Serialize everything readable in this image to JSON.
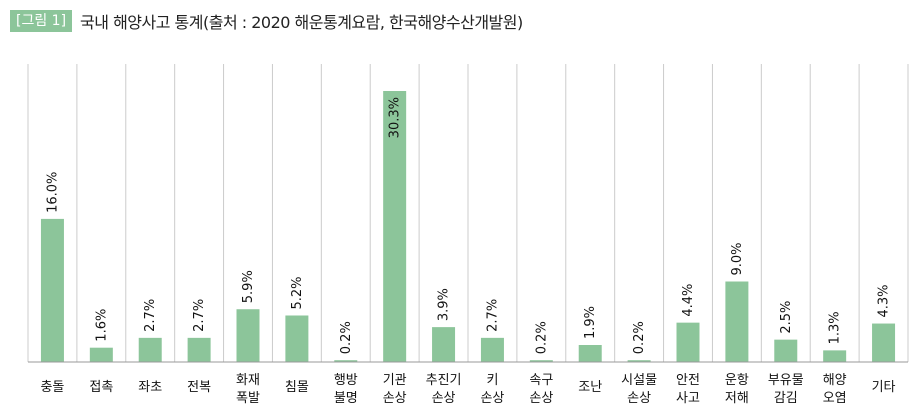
{
  "figure": {
    "badge": "[그림 1]",
    "title": "국내 해양사고 통계(출처 : 2020 해운통계요람, 한국해양수산개발원)"
  },
  "colors": {
    "bar": "#8cc59a",
    "grid": "#cccccc",
    "axis": "#999999"
  },
  "chart_data": {
    "type": "bar",
    "title": "국내 해양사고 통계(출처 : 2020 해운통계요람, 한국해양수산개발원)",
    "xlabel": "",
    "ylabel": "",
    "ylim": [
      0,
      31
    ],
    "grid": true,
    "categories": [
      [
        "충돌"
      ],
      [
        "접촉"
      ],
      [
        "좌초"
      ],
      [
        "전복"
      ],
      [
        "화재",
        "폭발"
      ],
      [
        "침몰"
      ],
      [
        "행방",
        "불명"
      ],
      [
        "기관",
        "손상"
      ],
      [
        "추진기",
        "손상"
      ],
      [
        "키",
        "손상"
      ],
      [
        "속구",
        "손상"
      ],
      [
        "조난"
      ],
      [
        "시설물",
        "손상"
      ],
      [
        "안전",
        "사고"
      ],
      [
        "운항",
        "저해"
      ],
      [
        "부유물",
        "감김"
      ],
      [
        "해양",
        "오염"
      ],
      [
        "기타"
      ]
    ],
    "values": [
      16.0,
      1.6,
      2.7,
      2.7,
      5.9,
      5.2,
      0.2,
      30.3,
      3.9,
      2.7,
      0.2,
      1.9,
      0.2,
      4.4,
      9.0,
      2.5,
      1.3,
      4.3
    ],
    "labels": [
      "16.0%",
      "1.6%",
      "2.7%",
      "2.7%",
      "5.9%",
      "5.2%",
      "0.2%",
      "30.3%",
      "3.9%",
      "2.7%",
      "0.2%",
      "1.9%",
      "0.2%",
      "4.4%",
      "9.0%",
      "2.5%",
      "1.3%",
      "4.3%"
    ]
  }
}
